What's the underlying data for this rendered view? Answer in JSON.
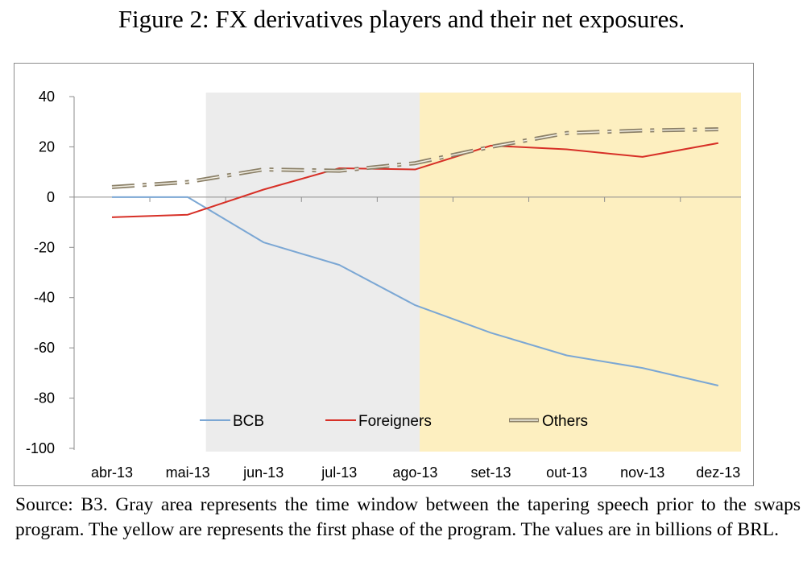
{
  "figure": {
    "title": "Figure 2: FX derivatives players and their net exposures.",
    "caption": "Source: B3. Gray area represents the time window between the tapering speech prior to the swaps program. The yellow are represents the first phase of the program. The values are in billions of BRL."
  },
  "chart_data": {
    "type": "line",
    "title": "",
    "xlabel": "",
    "ylabel": "",
    "categories": [
      "abr-13",
      "mai-13",
      "jun-13",
      "jul-13",
      "ago-13",
      "set-13",
      "out-13",
      "nov-13",
      "dez-13"
    ],
    "yticks": [
      "40",
      "20",
      "0",
      "-20",
      "-40",
      "-60",
      "-80",
      "-100"
    ],
    "ylim": [
      -100,
      40
    ],
    "grid": false,
    "legend_position": "bottom-center",
    "shaded_regions": [
      {
        "from": "mai-13",
        "to": "ago-13",
        "color": "#ececec"
      },
      {
        "from": "ago-13",
        "to": "dez-13",
        "color": "#fdefc0"
      }
    ],
    "series": [
      {
        "name": "BCB",
        "color": "#7ba7d4",
        "style": "solid",
        "values": [
          0,
          0,
          -18,
          -27,
          -43,
          -54,
          -63,
          -68,
          -75
        ]
      },
      {
        "name": "Foreigners",
        "color": "#d73027",
        "style": "solid",
        "values": [
          -8,
          -7,
          3,
          11.5,
          11,
          20.5,
          19,
          16,
          21.5
        ]
      },
      {
        "name": "Others",
        "color": "#8b8068",
        "style": "dashdot",
        "values": [
          4,
          6,
          11,
          10.5,
          13.5,
          20,
          25.5,
          26.5,
          27
        ]
      }
    ]
  }
}
